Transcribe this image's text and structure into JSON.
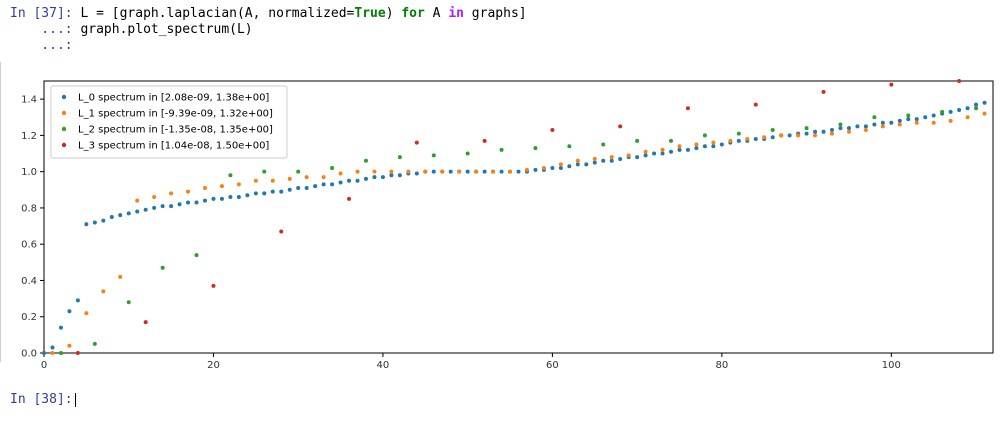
{
  "cell": {
    "prompt": "In [37]:",
    "line1": [
      {
        "t": " L = [graph.laplacian(A, normalized=",
        "c": "code"
      },
      {
        "t": "True",
        "c": "kw"
      },
      {
        "t": ") ",
        "c": "code"
      },
      {
        "t": "for",
        "c": "kw"
      },
      {
        "t": " A ",
        "c": "code"
      },
      {
        "t": "in",
        "c": "kw2"
      },
      {
        "t": " graphs]",
        "c": "code"
      }
    ],
    "cont1": "    ...:",
    "line2": " graph.plot_spectrum(L)",
    "cont2": "    ...:"
  },
  "next_cell": {
    "prompt": "In [38]:"
  },
  "chart_data": {
    "type": "scatter",
    "xlim": [
      0,
      112
    ],
    "ylim": [
      0,
      1.5
    ],
    "xticks": [
      0,
      20,
      40,
      60,
      80,
      100
    ],
    "xtick_labels": [
      "0",
      "20",
      "40",
      "60",
      "80",
      "100"
    ],
    "yticks": [
      0.0,
      0.2,
      0.4,
      0.6,
      0.8,
      1.0,
      1.2,
      1.4
    ],
    "ytick_labels": [
      "0.0",
      "0.2",
      "0.4",
      "0.6",
      "0.8",
      "1.0",
      "1.2",
      "1.4"
    ],
    "legend_position": "top-left",
    "grid": false,
    "series": [
      {
        "name": "L_0 spectrum in [2.08e-09, 1.38e+00]",
        "color": "#1f77b4",
        "x": [
          0,
          1,
          2,
          3,
          4,
          5,
          6,
          7,
          8,
          9,
          10,
          11,
          12,
          13,
          14,
          15,
          16,
          17,
          18,
          19,
          20,
          21,
          22,
          23,
          24,
          25,
          26,
          27,
          28,
          29,
          30,
          31,
          32,
          33,
          34,
          35,
          36,
          37,
          38,
          39,
          40,
          41,
          42,
          43,
          44,
          45,
          46,
          47,
          48,
          49,
          50,
          51,
          52,
          53,
          54,
          55,
          56,
          57,
          58,
          59,
          60,
          61,
          62,
          63,
          64,
          65,
          66,
          67,
          68,
          69,
          70,
          71,
          72,
          73,
          74,
          75,
          76,
          77,
          78,
          79,
          80,
          81,
          82,
          83,
          84,
          85,
          86,
          87,
          88,
          89,
          90,
          91,
          92,
          93,
          94,
          95,
          96,
          97,
          98,
          99,
          100,
          101,
          102,
          103,
          104,
          105,
          106,
          107,
          108,
          109,
          110,
          111
        ],
        "y": [
          0.0,
          0.03,
          0.14,
          0.23,
          0.29,
          0.71,
          0.72,
          0.73,
          0.75,
          0.76,
          0.77,
          0.78,
          0.79,
          0.8,
          0.81,
          0.81,
          0.82,
          0.83,
          0.83,
          0.84,
          0.85,
          0.85,
          0.86,
          0.86,
          0.87,
          0.88,
          0.88,
          0.89,
          0.89,
          0.9,
          0.91,
          0.91,
          0.92,
          0.93,
          0.93,
          0.94,
          0.95,
          0.95,
          0.96,
          0.97,
          0.97,
          0.98,
          0.98,
          0.99,
          0.99,
          1.0,
          1.0,
          1.0,
          1.0,
          1.0,
          1.0,
          1.0,
          1.0,
          1.0,
          1.0,
          1.0,
          1.0,
          1.0,
          1.01,
          1.01,
          1.02,
          1.02,
          1.03,
          1.04,
          1.04,
          1.05,
          1.06,
          1.06,
          1.07,
          1.08,
          1.08,
          1.09,
          1.1,
          1.1,
          1.11,
          1.12,
          1.12,
          1.13,
          1.14,
          1.14,
          1.15,
          1.16,
          1.17,
          1.17,
          1.18,
          1.18,
          1.19,
          1.2,
          1.2,
          1.21,
          1.21,
          1.22,
          1.22,
          1.23,
          1.24,
          1.24,
          1.25,
          1.25,
          1.26,
          1.27,
          1.27,
          1.28,
          1.29,
          1.29,
          1.3,
          1.31,
          1.32,
          1.33,
          1.34,
          1.35,
          1.37,
          1.38
        ]
      },
      {
        "name": "L_1 spectrum in [-9.39e-09, 1.32e+00]",
        "color": "#ff7f0e",
        "x": [
          1,
          3,
          5,
          7,
          9,
          11,
          13,
          15,
          17,
          19,
          21,
          23,
          25,
          27,
          29,
          31,
          33,
          35,
          37,
          39,
          41,
          43,
          45,
          47,
          49,
          51,
          53,
          55,
          57,
          59,
          61,
          63,
          65,
          67,
          69,
          71,
          73,
          75,
          77,
          79,
          81,
          83,
          85,
          87,
          89,
          91,
          93,
          95,
          97,
          99,
          101,
          103,
          105,
          107,
          109,
          111
        ],
        "y": [
          0.0,
          0.04,
          0.22,
          0.34,
          0.42,
          0.84,
          0.86,
          0.88,
          0.89,
          0.91,
          0.92,
          0.93,
          0.95,
          0.95,
          0.96,
          0.97,
          0.97,
          0.99,
          1.0,
          1.0,
          1.0,
          1.0,
          1.0,
          1.0,
          1.0,
          1.0,
          1.0,
          1.0,
          1.01,
          1.02,
          1.04,
          1.06,
          1.07,
          1.08,
          1.09,
          1.11,
          1.12,
          1.14,
          1.15,
          1.16,
          1.17,
          1.18,
          1.19,
          1.2,
          1.2,
          1.2,
          1.21,
          1.22,
          1.23,
          1.25,
          1.26,
          1.27,
          1.27,
          1.28,
          1.3,
          1.32
        ]
      },
      {
        "name": "L_2 spectrum in [-1.35e-08, 1.35e+00]",
        "color": "#2ca02c",
        "x": [
          2,
          6,
          10,
          14,
          18,
          22,
          26,
          30,
          34,
          38,
          42,
          46,
          50,
          54,
          58,
          62,
          66,
          70,
          74,
          78,
          82,
          86,
          90,
          94,
          98,
          102,
          106,
          110
        ],
        "y": [
          0.0,
          0.05,
          0.28,
          0.47,
          0.54,
          0.98,
          1.0,
          1.0,
          1.02,
          1.06,
          1.08,
          1.09,
          1.1,
          1.12,
          1.13,
          1.14,
          1.15,
          1.17,
          1.17,
          1.2,
          1.21,
          1.23,
          1.24,
          1.26,
          1.3,
          1.31,
          1.33,
          1.35
        ]
      },
      {
        "name": "L_3 spectrum in [1.04e-08, 1.50e+00]",
        "color": "#d62728",
        "x": [
          4,
          12,
          20,
          28,
          36,
          44,
          52,
          60,
          68,
          76,
          84,
          92,
          100,
          108
        ],
        "y": [
          0.0,
          0.17,
          0.37,
          0.67,
          0.85,
          1.16,
          1.17,
          1.23,
          1.25,
          1.35,
          1.37,
          1.44,
          1.48,
          1.5
        ]
      }
    ]
  }
}
